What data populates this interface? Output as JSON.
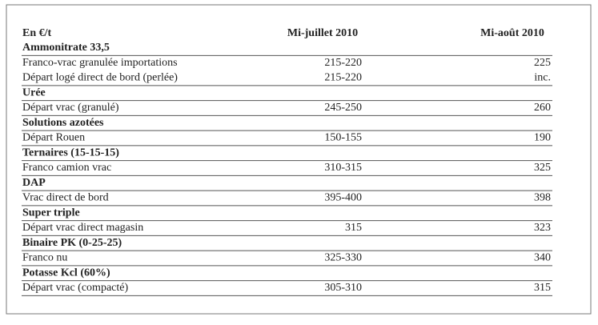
{
  "table": {
    "header": [
      "En €/t",
      "Mi-juillet 2010",
      "Mi-août 2010"
    ],
    "sections": [
      {
        "title": "Ammonitrate 33,5",
        "rows": [
          [
            "Franco-vrac granulée importations",
            "215-220",
            "225"
          ],
          [
            "Départ logé direct de bord (perlée)",
            "215-220",
            "inc."
          ]
        ]
      },
      {
        "title": "Urée",
        "rows": [
          [
            "Départ vrac (granulé)",
            "245-250",
            "260"
          ]
        ]
      },
      {
        "title": "Solutions azotées",
        "rows": [
          [
            "Départ Rouen",
            "150-155",
            "190"
          ]
        ]
      },
      {
        "title": "Ternaires (15-15-15)",
        "rows": [
          [
            "Franco camion vrac",
            "310-315",
            "325"
          ]
        ]
      },
      {
        "title": "DAP",
        "rows": [
          [
            "Vrac direct de bord",
            "395-400",
            "398"
          ]
        ]
      },
      {
        "title": "Super triple",
        "rows": [
          [
            "Départ vrac direct magasin",
            "315",
            "323"
          ]
        ]
      },
      {
        "title": "Binaire PK (0-25-25)",
        "rows": [
          [
            "Franco nu",
            "325-330",
            "340"
          ]
        ]
      },
      {
        "title": "Potasse Kcl (60%)",
        "rows": [
          [
            "Départ vrac (compacté)",
            "305-310",
            "315"
          ]
        ]
      }
    ]
  }
}
